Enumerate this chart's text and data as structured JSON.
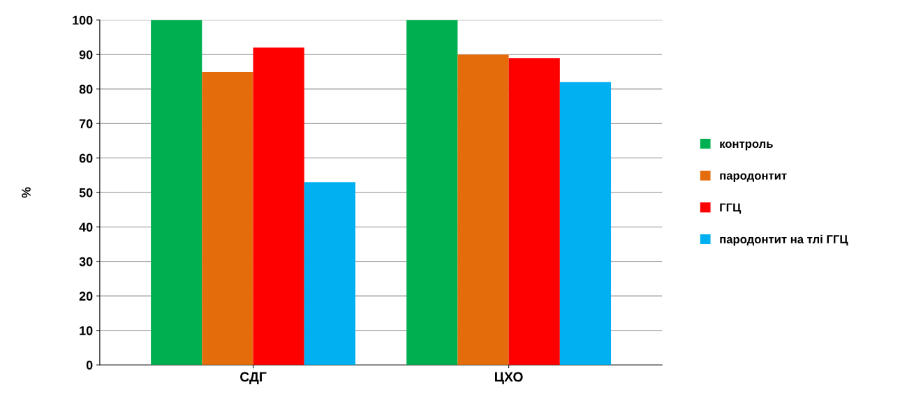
{
  "chart_data": {
    "type": "bar",
    "ylabel": "%",
    "categories": [
      "СДГ",
      "ЦХО"
    ],
    "series": [
      {
        "name": "контроль",
        "color": "#00b050",
        "values": [
          100,
          100
        ]
      },
      {
        "name": "пародонтит",
        "color": "#e46c0a",
        "values": [
          85,
          90
        ]
      },
      {
        "name": "ГГЦ",
        "color": "#ff0000",
        "values": [
          92,
          89
        ]
      },
      {
        "name": "пародонтит на тлі ГГЦ",
        "color": "#00b0f0",
        "values": [
          53,
          82
        ]
      }
    ],
    "ylim": [
      0,
      100
    ],
    "yticks": [
      0,
      10,
      20,
      30,
      40,
      50,
      60,
      70,
      80,
      90,
      100
    ],
    "grid": "y",
    "legend": "right"
  }
}
